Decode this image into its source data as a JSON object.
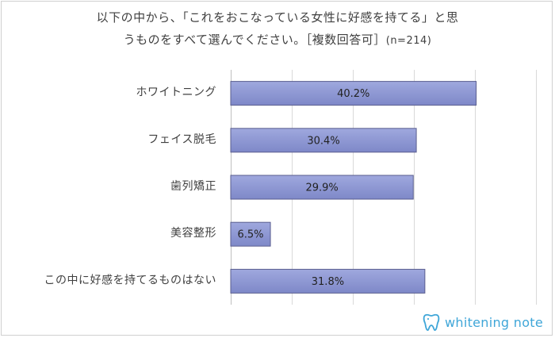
{
  "title": {
    "line1": "以下の中から、「これをおこなっている女性に好感を持てる」と思",
    "line2": "うものをすべて選んでください。［複数回答可］",
    "note": "(n=214)"
  },
  "brand": {
    "name": "whitening note",
    "icon": "tooth-icon",
    "color": "#3fa6d8"
  },
  "chart_data": {
    "type": "bar",
    "orientation": "horizontal",
    "categories": [
      "ホワイトニング",
      "フェイス脱毛",
      "歯列矯正",
      "美容整形",
      "この中に好感を持てるものはない"
    ],
    "values": [
      40.2,
      30.4,
      29.9,
      6.5,
      31.8
    ],
    "data_labels": [
      "40.2%",
      "30.4%",
      "29.9%",
      "6.5%",
      "31.8%"
    ],
    "xlim": [
      0,
      50
    ],
    "grid": true,
    "bar_color": "#9fa8de",
    "bar_color_dark": "#7e88c8",
    "bar_border": "#5a5e8f"
  }
}
